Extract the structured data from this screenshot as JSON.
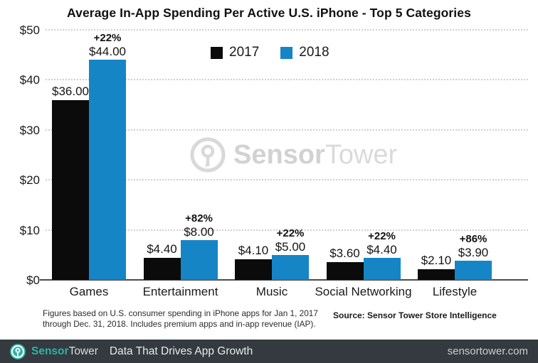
{
  "title": "Average In-App Spending Per Active U.S. iPhone - Top 5 Categories",
  "chart_data": {
    "type": "bar",
    "categories": [
      "Games",
      "Entertainment",
      "Music",
      "Social Networking",
      "Lifestyle"
    ],
    "series": [
      {
        "name": "2017",
        "color": "#0b0b0b",
        "values": [
          36.0,
          4.4,
          4.1,
          3.6,
          2.1
        ],
        "labels": [
          "$36.00",
          "$4.40",
          "$4.10",
          "$3.60",
          "$2.10"
        ]
      },
      {
        "name": "2018",
        "color": "#1585c6",
        "values": [
          44.0,
          8.0,
          5.0,
          4.4,
          3.9
        ],
        "labels": [
          "$44.00",
          "$8.00",
          "$5.00",
          "$4.40",
          "$3.90"
        ]
      }
    ],
    "pct_change": [
      "+22%",
      "+82%",
      "+22%",
      "+22%",
      "+86%"
    ],
    "ytick_labels": [
      "$0",
      "$10",
      "$20",
      "$30",
      "$40",
      "$50"
    ],
    "ylim": [
      0,
      50
    ],
    "grid": "horizontal-dotted",
    "legend_position": "top-center"
  },
  "legend": {
    "items": [
      {
        "label": "2017",
        "color": "#0b0b0b"
      },
      {
        "label": "2018",
        "color": "#1585c6"
      }
    ]
  },
  "watermark": {
    "text_bold": "Sensor",
    "text_light": "Tower"
  },
  "footnote": {
    "line1": "Figures based on U.S. consumer spending in iPhone apps for Jan 1, 2017",
    "line2": "through Dec. 31, 2018. Includes premium apps and in-app revenue (IAP).",
    "source": "Source: Sensor Tower Store Intelligence"
  },
  "footer_bar": {
    "brand_bold": "Sensor",
    "brand_light": "Tower",
    "tagline": "Data That Drives App Growth",
    "url": "sensortower.com",
    "bg_color": "#343a3f",
    "teal_color": "#2eb3a4"
  }
}
